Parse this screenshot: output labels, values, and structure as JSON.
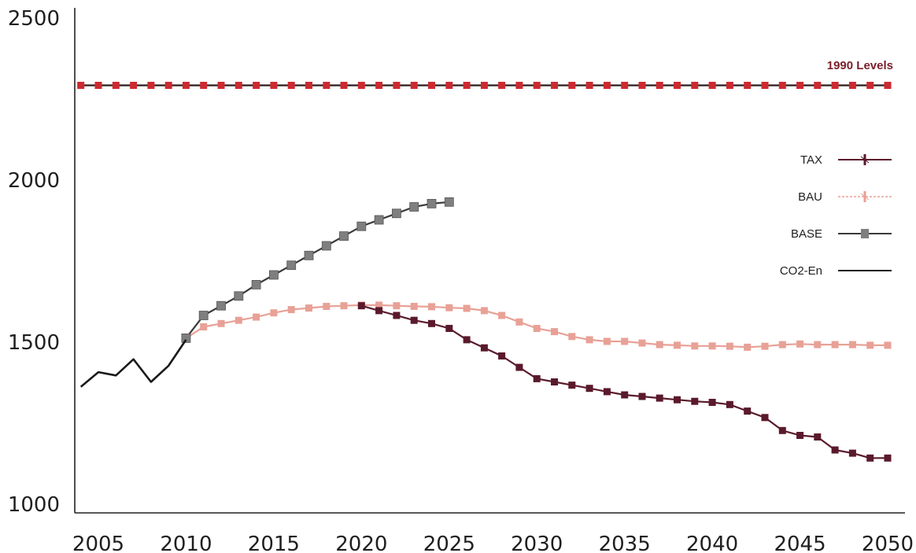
{
  "chart_data": {
    "type": "line",
    "title": "",
    "xlabel": "",
    "ylabel": "",
    "xlim": [
      2004,
      2051
    ],
    "ylim": [
      1000,
      2500
    ],
    "y_ticks": [
      "2500",
      "2000",
      "1500",
      "1000"
    ],
    "x_ticks": [
      "2005",
      "2010",
      "2015",
      "2020",
      "2025",
      "2030",
      "2035",
      "2040",
      "2045",
      "2050"
    ],
    "grid": false,
    "legend_position": "right",
    "reference_label": "1990 Levels",
    "series": [
      {
        "name": "1990 Levels",
        "color": "#cc2a30",
        "marker": "square",
        "x": [
          2004,
          2005,
          2006,
          2007,
          2008,
          2009,
          2010,
          2011,
          2012,
          2013,
          2014,
          2015,
          2016,
          2017,
          2018,
          2019,
          2020,
          2021,
          2022,
          2023,
          2024,
          2025,
          2026,
          2027,
          2028,
          2029,
          2030,
          2031,
          2032,
          2033,
          2034,
          2035,
          2036,
          2037,
          2038,
          2039,
          2040,
          2041,
          2042,
          2043,
          2044,
          2045,
          2046,
          2047,
          2048,
          2049,
          2050
        ],
        "y": [
          2290,
          2290,
          2290,
          2290,
          2290,
          2290,
          2290,
          2290,
          2290,
          2290,
          2290,
          2290,
          2290,
          2290,
          2290,
          2290,
          2290,
          2290,
          2290,
          2290,
          2290,
          2290,
          2290,
          2290,
          2290,
          2290,
          2290,
          2290,
          2290,
          2290,
          2290,
          2290,
          2290,
          2290,
          2290,
          2290,
          2290,
          2290,
          2290,
          2290,
          2290,
          2290,
          2290,
          2290,
          2290,
          2290,
          2290
        ]
      },
      {
        "name": "TAX",
        "color": "#5a1a2c",
        "marker": "square",
        "x": [
          2020,
          2021,
          2022,
          2023,
          2024,
          2025,
          2026,
          2027,
          2028,
          2029,
          2030,
          2031,
          2032,
          2033,
          2034,
          2035,
          2036,
          2037,
          2038,
          2039,
          2040,
          2041,
          2042,
          2043,
          2044,
          2045,
          2046,
          2047,
          2048,
          2049,
          2050
        ],
        "y": [
          1610,
          1595,
          1580,
          1565,
          1555,
          1540,
          1505,
          1480,
          1455,
          1420,
          1385,
          1375,
          1365,
          1355,
          1345,
          1335,
          1330,
          1325,
          1320,
          1315,
          1312,
          1305,
          1285,
          1265,
          1225,
          1210,
          1205,
          1165,
          1155,
          1140,
          1140
        ]
      },
      {
        "name": "BAU",
        "color": "#e8a196",
        "marker": "square",
        "x": [
          2010,
          2011,
          2012,
          2013,
          2014,
          2015,
          2016,
          2017,
          2018,
          2019,
          2020,
          2021,
          2022,
          2023,
          2024,
          2025,
          2026,
          2027,
          2028,
          2029,
          2030,
          2031,
          2032,
          2033,
          2034,
          2035,
          2036,
          2037,
          2038,
          2039,
          2040,
          2041,
          2042,
          2043,
          2044,
          2045,
          2046,
          2047,
          2048,
          2049,
          2050
        ],
        "y": [
          1510,
          1545,
          1555,
          1565,
          1575,
          1588,
          1598,
          1603,
          1608,
          1610,
          1612,
          1612,
          1610,
          1608,
          1607,
          1604,
          1602,
          1595,
          1580,
          1560,
          1540,
          1530,
          1515,
          1505,
          1500,
          1500,
          1495,
          1490,
          1488,
          1486,
          1486,
          1485,
          1482,
          1485,
          1490,
          1492,
          1490,
          1490,
          1490,
          1488,
          1488
        ]
      },
      {
        "name": "BASE",
        "color": "#7f7f7f",
        "marker": "square",
        "x": [
          2010,
          2011,
          2012,
          2013,
          2014,
          2015,
          2016,
          2017,
          2018,
          2019,
          2020,
          2021,
          2022,
          2023,
          2024,
          2025
        ],
        "y": [
          1510,
          1580,
          1610,
          1640,
          1675,
          1705,
          1735,
          1765,
          1795,
          1825,
          1855,
          1875,
          1895,
          1915,
          1925,
          1930
        ]
      },
      {
        "name": "CO2-En",
        "color": "#1a1a1a",
        "marker": "none",
        "x": [
          2004,
          2005,
          2006,
          2007,
          2008,
          2009,
          2010
        ],
        "y": [
          1360,
          1405,
          1395,
          1445,
          1375,
          1425,
          1505
        ]
      }
    ],
    "legend": [
      {
        "label": "TAX",
        "color": "#5a1a2c",
        "marker": "cross",
        "line_color": "#5a1a2c"
      },
      {
        "label": "BAU",
        "color": "#e8a196",
        "marker": "cross",
        "line_color": "#e8a196"
      },
      {
        "label": "BASE",
        "color": "#7f7f7f",
        "marker": "square",
        "line_color": "#3a3a3a"
      },
      {
        "label": "CO2-En",
        "color": "#1a1a1a",
        "marker": "none",
        "line_color": "#1a1a1a"
      }
    ]
  }
}
